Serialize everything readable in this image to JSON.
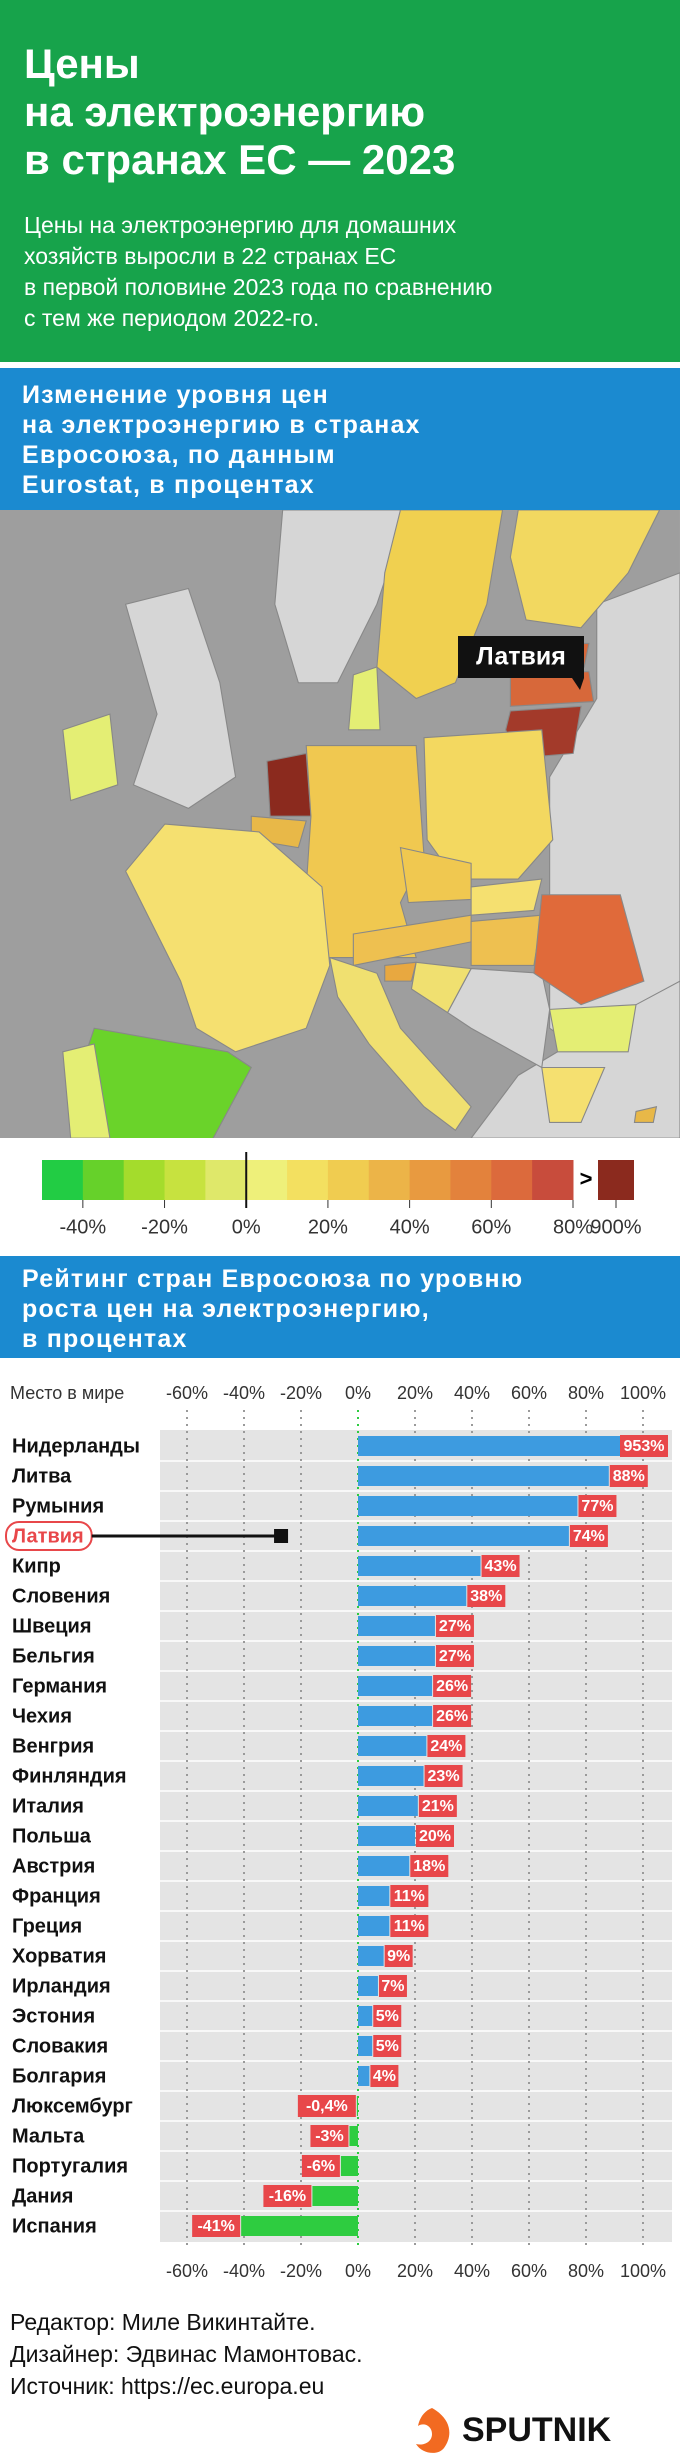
{
  "header": {
    "title": "Цены\nна электроэнергию\nв странах ЕС — 2023",
    "subtitle": "Цены на электроэнергию для домашних\nхозяйств выросли в 22 странах ЕС\nв первой половине 2023 года по сравнению\nс тем же периодом 2022-го."
  },
  "map": {
    "heading": "Изменение уровня цен\nна электроэнергию в странах\nЕвросоюза, по данным\nEurostat, в процентах",
    "label": "Латвия",
    "legend": {
      "xlim": [
        -50,
        80
      ],
      "colors": [
        "#22cc44",
        "#66d12a",
        "#a4dc2c",
        "#c7e23f",
        "#dfe86a",
        "#eef07a",
        "#f3e060",
        "#f0cc50",
        "#ecb448",
        "#e89a40",
        "#e3823c",
        "#dc6a3c",
        "#c84c3c"
      ],
      "ticks": [
        {
          "value": -40,
          "label": "-40%"
        },
        {
          "value": -20,
          "label": "-20%"
        },
        {
          "value": 0,
          "label": "0%"
        },
        {
          "value": 20,
          "label": "20%"
        },
        {
          "value": 40,
          "label": "40%"
        },
        {
          "value": 60,
          "label": "60%"
        },
        {
          "value": 80,
          "label": "80%"
        }
      ],
      "overflow_symbol": ">",
      "overflow_color": "#8b2a1e",
      "overflow_tick": {
        "value": 900,
        "label": "900%"
      }
    }
  },
  "chart_data": {
    "type": "bar",
    "orientation": "horizontal",
    "title": "Рейтинг стран Евросоюза по уровню\nроста цен на электроэнергию,\nв процентах",
    "x_label": "Место в мире",
    "categories": [
      "Нидерланды",
      "Литва",
      "Румыния",
      "Латвия",
      "Кипр",
      "Словения",
      "Швеция",
      "Бельгия",
      "Германия",
      "Чехия",
      "Венгрия",
      "Финляндия",
      "Италия",
      "Польша",
      "Австрия",
      "Франция",
      "Греция",
      "Хорватия",
      "Ирландия",
      "Эстония",
      "Словакия",
      "Болгария",
      "Люксембург",
      "Мальта",
      "Португалия",
      "Дания",
      "Испания"
    ],
    "values": [
      953,
      88,
      77,
      74,
      43,
      38,
      27,
      27,
      26,
      26,
      24,
      23,
      21,
      20,
      18,
      11,
      11,
      9,
      7,
      5,
      5,
      4,
      -0.4,
      -3,
      -6,
      -16,
      -41
    ],
    "value_labels": [
      "953%",
      "88%",
      "77%",
      "74%",
      "43%",
      "38%",
      "27%",
      "27%",
      "26%",
      "26%",
      "24%",
      "23%",
      "21%",
      "20%",
      "18%",
      "11%",
      "11%",
      "9%",
      "7%",
      "5%",
      "5%",
      "4%",
      "-0,4%",
      "-3%",
      "-6%",
      "-16%",
      "-41%"
    ],
    "xlim": [
      -60,
      100
    ],
    "xticks": [
      {
        "value": -60,
        "label": "-60%"
      },
      {
        "value": -40,
        "label": "-40%"
      },
      {
        "value": -20,
        "label": "-20%"
      },
      {
        "value": 0,
        "label": "0%"
      },
      {
        "value": 20,
        "label": "20%"
      },
      {
        "value": 40,
        "label": "40%"
      },
      {
        "value": 60,
        "label": "60%"
      },
      {
        "value": 80,
        "label": "80%"
      },
      {
        "value": 100,
        "label": "100%"
      }
    ],
    "colors": {
      "positive": "#3d9be0",
      "negative": "#2ecc40",
      "label": "#e8474a"
    },
    "grid": true
  },
  "credits": [
    "Редактор: Миле Викинтайте.",
    "Дизайнер: Эдвинас Мамонтовас.",
    "Источник: https://ec.europa.eu"
  ],
  "brand": "SPUTNIK"
}
